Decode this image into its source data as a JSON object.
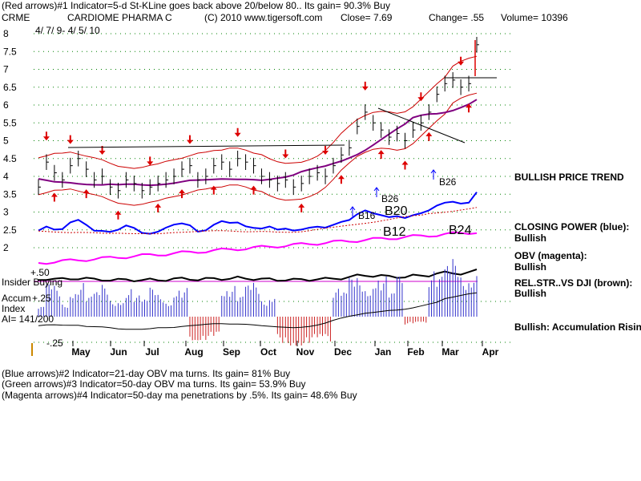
{
  "header": {
    "line1_indicator": "(Red arrows)#1 Indicator=5-d St-KLine goes back above 20/below 80..  Its gain= 90.3% Buy",
    "symbol": "CRME",
    "company": "CARDIOME PHARMA C",
    "copyright": "(C) 2010 www.tigersoft.com",
    "close": "Close=  7.69",
    "change": "Change= .55",
    "volume": "Volume= 10396",
    "date_range": "4/ 7/ 9-  4/ 5/ 10"
  },
  "chart_data": {
    "type": "line",
    "symbol": "CRME",
    "ylim": [
      1.5,
      8.2
    ],
    "y_ticks": [
      "8",
      "7.5",
      "7",
      "6.5",
      "6",
      "5.5",
      "5",
      "4.5",
      "4",
      "3.5",
      "3",
      "2.5",
      "2"
    ],
    "x_ticks": [
      "May",
      "Jun",
      "Jul",
      "Aug",
      "Sep",
      "Oct",
      "Nov",
      "Dec",
      "Jan",
      "Feb",
      "Mar",
      "Apr"
    ],
    "price_close": [
      3.7,
      4.4,
      4.1,
      3.9,
      4.3,
      4.5,
      4.2,
      3.9,
      4.0,
      3.7,
      3.6,
      3.9,
      3.8,
      3.6,
      3.7,
      3.8,
      3.9,
      4.0,
      4.2,
      4.3,
      3.9,
      4.0,
      4.3,
      4.4,
      4.2,
      4.5,
      4.4,
      4.3,
      4.0,
      3.9,
      3.8,
      3.9,
      3.7,
      3.8,
      4.0,
      4.1,
      4.0,
      4.3,
      4.6,
      4.8,
      5.4,
      5.8,
      5.5,
      5.3,
      5.1,
      5.2,
      5.0,
      5.3,
      5.5,
      5.8,
      6.3,
      6.6,
      6.7,
      6.5,
      6.6,
      7.69
    ],
    "oscillators": {
      "closing_power": "blue",
      "obv": "magenta",
      "rel_strength_vs_dji": "brown",
      "accumulation_index": "blue/red histogram"
    },
    "osc_ticks": [
      "+.50",
      "+.25",
      "-.25"
    ],
    "signals": [
      "B16",
      "B26",
      "B20",
      "B12",
      "B24",
      "B26"
    ]
  },
  "right_labels": {
    "trend": "BULLISH PRICE TREND",
    "cp_title": "CLOSING POWER (blue):",
    "cp_value": "Bullish",
    "obv_title": "OBV (magenta):",
    "obv_value": "Bullish",
    "rs_title": "REL.STR..VS DJI (brown):",
    "rs_value": "Bullish",
    "accum": "Bullish: Accumulation Rising"
  },
  "left_labels": {
    "insider": "Insider Buying",
    "accum1": "Accum",
    "accum2": "Index",
    "ai": "AI= 141/200"
  },
  "footer": {
    "line1": "(Blue arrows)#2 Indicator=21-day OBV ma turns.  Its gain= 81% Buy",
    "line2": "(Green arrows)#3 Indicator=50-day OBV ma turns.  Its gain= 53.9% Buy",
    "line3": "(Magenta arrows)#4 Indicator=50-day ma penetrations by .5%.  Its gain= 48.6% Buy"
  },
  "colors": {
    "price": "#000000",
    "band": "#cc0000",
    "ma50": "#800080",
    "closing_power": "#0000ff",
    "obv": "#ff00ff",
    "rel_strength": "#000000",
    "accum_pos": "#3333cc",
    "accum_neg": "#cc2222",
    "grid": "#008000",
    "arrow_red": "#dd0000"
  }
}
